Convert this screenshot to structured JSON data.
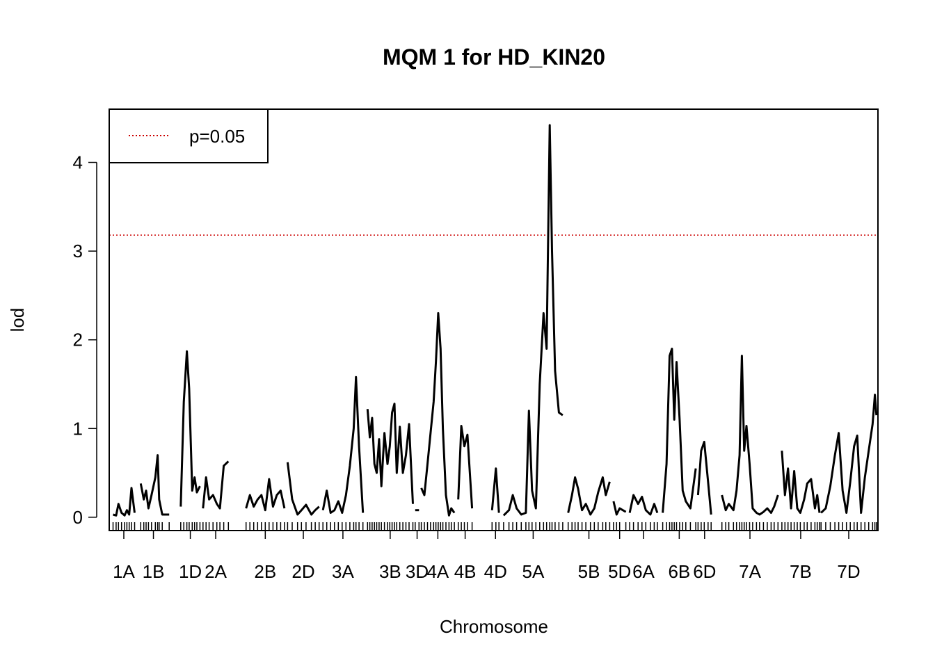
{
  "chart_data": {
    "type": "line",
    "title": "MQM 1 for HD_KIN20",
    "xlabel": "Chromosome",
    "ylabel": "lod",
    "ylim": [
      -0.15,
      4.6
    ],
    "yticks": [
      0,
      1,
      2,
      3,
      4
    ],
    "xlim": [
      0,
      100
    ],
    "grid": false,
    "legend": {
      "position": "top-left",
      "entries": [
        {
          "label": "p=0.05",
          "style": "dotted",
          "color": "#cc0000"
        }
      ]
    },
    "threshold": {
      "label": "p=0.05",
      "value": 3.18,
      "color": "#cc0000"
    },
    "chromosomes": [
      {
        "name": "1A",
        "start": 0.5,
        "end": 3.3,
        "labeled": true
      },
      {
        "name": "1B",
        "start": 3.7,
        "end": 7.8,
        "labeled": true
      },
      {
        "name": "1D",
        "start": 9.3,
        "end": 11.8,
        "labeled": true
      },
      {
        "name": "2A",
        "start": 12.2,
        "end": 15.5,
        "labeled": true
      },
      {
        "name": "2B",
        "start": 17.8,
        "end": 22.8,
        "labeled": true
      },
      {
        "name": "2D",
        "start": 23.2,
        "end": 27.3,
        "labeled": true
      },
      {
        "name": "3A",
        "start": 27.8,
        "end": 33.0,
        "labeled": true
      },
      {
        "name": "3B",
        "start": 33.6,
        "end": 39.5,
        "labeled": true
      },
      {
        "name": "3D",
        "start": 39.8,
        "end": 40.3,
        "labeled": true
      },
      {
        "name": "4A",
        "start": 40.6,
        "end": 44.9,
        "labeled": true
      },
      {
        "name": "4B",
        "start": 45.4,
        "end": 47.2,
        "labeled": true
      },
      {
        "name": "4D",
        "start": 49.8,
        "end": 50.7,
        "labeled": true
      },
      {
        "name": "5A",
        "start": 51.3,
        "end": 59.0,
        "labeled": true
      },
      {
        "name": "5B",
        "start": 59.7,
        "end": 65.1,
        "labeled": true
      },
      {
        "name": "5D",
        "start": 65.6,
        "end": 67.2,
        "labeled": true
      },
      {
        "name": "6A",
        "start": 67.7,
        "end": 71.3,
        "labeled": true
      },
      {
        "name": "6B",
        "start": 72.0,
        "end": 76.3,
        "labeled": true
      },
      {
        "name": "6D",
        "start": 76.6,
        "end": 78.3,
        "labeled": true
      },
      {
        "name": "7A",
        "start": 79.7,
        "end": 87.0,
        "labeled": true
      },
      {
        "name": "7B",
        "start": 87.5,
        "end": 92.4,
        "labeled": true
      },
      {
        "name": "7D",
        "start": 92.6,
        "end": 99.8,
        "labeled": true
      }
    ],
    "series": [
      {
        "values": [
          [
            0.5,
            0.03
          ],
          [
            0.9,
            0.02
          ],
          [
            1.2,
            0.15
          ],
          [
            1.6,
            0.05
          ],
          [
            2.0,
            0.02
          ],
          [
            2.3,
            0.08
          ],
          [
            2.6,
            0.03
          ],
          [
            2.9,
            0.33
          ],
          [
            3.3,
            0.05
          ],
          [
            4.1,
            0.38
          ],
          [
            4.5,
            0.2
          ],
          [
            4.8,
            0.3
          ],
          [
            5.1,
            0.1
          ],
          [
            5.5,
            0.25
          ],
          [
            6.0,
            0.45
          ],
          [
            6.3,
            0.7
          ],
          [
            6.5,
            0.2
          ],
          [
            6.9,
            0.03
          ],
          [
            7.8,
            0.03
          ],
          [
            9.3,
            0.12
          ],
          [
            9.7,
            1.3
          ],
          [
            10.1,
            1.87
          ],
          [
            10.4,
            1.45
          ],
          [
            10.8,
            0.3
          ],
          [
            11.1,
            0.45
          ],
          [
            11.4,
            0.28
          ],
          [
            11.8,
            0.35
          ],
          [
            12.2,
            0.1
          ],
          [
            12.6,
            0.45
          ],
          [
            13.0,
            0.2
          ],
          [
            13.5,
            0.25
          ],
          [
            14.0,
            0.15
          ],
          [
            14.4,
            0.1
          ],
          [
            14.9,
            0.58
          ],
          [
            15.5,
            0.63
          ],
          [
            17.8,
            0.1
          ],
          [
            18.3,
            0.25
          ],
          [
            18.8,
            0.12
          ],
          [
            19.3,
            0.2
          ],
          [
            19.8,
            0.25
          ],
          [
            20.3,
            0.08
          ],
          [
            20.8,
            0.43
          ],
          [
            21.3,
            0.12
          ],
          [
            21.8,
            0.25
          ],
          [
            22.3,
            0.3
          ],
          [
            22.8,
            0.1
          ],
          [
            23.2,
            0.62
          ],
          [
            23.8,
            0.2
          ],
          [
            24.5,
            0.03
          ],
          [
            25.0,
            0.08
          ],
          [
            25.6,
            0.14
          ],
          [
            26.3,
            0.03
          ],
          [
            26.8,
            0.08
          ],
          [
            27.3,
            0.12
          ],
          [
            27.8,
            0.08
          ],
          [
            28.3,
            0.3
          ],
          [
            28.8,
            0.05
          ],
          [
            29.3,
            0.08
          ],
          [
            29.8,
            0.18
          ],
          [
            30.3,
            0.05
          ],
          [
            30.8,
            0.25
          ],
          [
            31.3,
            0.58
          ],
          [
            31.8,
            1.0
          ],
          [
            32.1,
            1.58
          ],
          [
            32.5,
            0.8
          ],
          [
            33.0,
            0.05
          ],
          [
            33.6,
            1.22
          ],
          [
            33.9,
            0.9
          ],
          [
            34.2,
            1.12
          ],
          [
            34.5,
            0.6
          ],
          [
            34.8,
            0.5
          ],
          [
            35.1,
            0.88
          ],
          [
            35.4,
            0.35
          ],
          [
            35.8,
            0.95
          ],
          [
            36.2,
            0.6
          ],
          [
            36.5,
            0.8
          ],
          [
            36.8,
            1.18
          ],
          [
            37.1,
            1.28
          ],
          [
            37.4,
            0.5
          ],
          [
            37.8,
            1.02
          ],
          [
            38.2,
            0.5
          ],
          [
            38.6,
            0.7
          ],
          [
            39.0,
            1.05
          ],
          [
            39.5,
            0.15
          ],
          [
            39.8,
            0.08
          ],
          [
            40.3,
            0.08
          ],
          [
            40.6,
            0.33
          ],
          [
            41.0,
            0.25
          ],
          [
            41.4,
            0.6
          ],
          [
            41.8,
            0.95
          ],
          [
            42.2,
            1.3
          ],
          [
            42.5,
            1.75
          ],
          [
            42.8,
            2.3
          ],
          [
            43.1,
            1.9
          ],
          [
            43.4,
            1.0
          ],
          [
            43.8,
            0.25
          ],
          [
            44.2,
            0.02
          ],
          [
            44.5,
            0.1
          ],
          [
            44.9,
            0.05
          ],
          [
            45.4,
            0.2
          ],
          [
            45.8,
            1.03
          ],
          [
            46.2,
            0.8
          ],
          [
            46.6,
            0.93
          ],
          [
            47.2,
            0.1
          ],
          [
            49.8,
            0.08
          ],
          [
            50.3,
            0.55
          ],
          [
            50.7,
            0.05
          ],
          [
            51.3,
            0.02
          ],
          [
            52.0,
            0.08
          ],
          [
            52.5,
            0.25
          ],
          [
            53.0,
            0.1
          ],
          [
            53.6,
            0.03
          ],
          [
            54.2,
            0.05
          ],
          [
            54.6,
            1.2
          ],
          [
            55.0,
            0.3
          ],
          [
            55.5,
            0.1
          ],
          [
            56.0,
            1.5
          ],
          [
            56.5,
            2.3
          ],
          [
            56.9,
            1.9
          ],
          [
            57.3,
            4.42
          ],
          [
            57.6,
            3.0
          ],
          [
            58.0,
            1.65
          ],
          [
            58.5,
            1.18
          ],
          [
            59.0,
            1.15
          ],
          [
            59.7,
            0.05
          ],
          [
            60.2,
            0.25
          ],
          [
            60.6,
            0.45
          ],
          [
            61.0,
            0.32
          ],
          [
            61.5,
            0.08
          ],
          [
            62.0,
            0.15
          ],
          [
            62.6,
            0.03
          ],
          [
            63.1,
            0.1
          ],
          [
            63.6,
            0.28
          ],
          [
            64.2,
            0.45
          ],
          [
            64.6,
            0.25
          ],
          [
            65.1,
            0.4
          ],
          [
            65.6,
            0.18
          ],
          [
            66.0,
            0.03
          ],
          [
            66.4,
            0.1
          ],
          [
            67.2,
            0.06
          ],
          [
            67.7,
            0.05
          ],
          [
            68.2,
            0.25
          ],
          [
            68.8,
            0.15
          ],
          [
            69.3,
            0.23
          ],
          [
            69.8,
            0.08
          ],
          [
            70.4,
            0.03
          ],
          [
            70.9,
            0.15
          ],
          [
            71.3,
            0.05
          ],
          [
            72.0,
            0.05
          ],
          [
            72.5,
            0.6
          ],
          [
            72.9,
            1.82
          ],
          [
            73.2,
            1.9
          ],
          [
            73.5,
            1.1
          ],
          [
            73.8,
            1.75
          ],
          [
            74.2,
            1.1
          ],
          [
            74.6,
            0.3
          ],
          [
            75.0,
            0.18
          ],
          [
            75.6,
            0.1
          ],
          [
            76.3,
            0.55
          ],
          [
            76.6,
            0.25
          ],
          [
            77.0,
            0.75
          ],
          [
            77.4,
            0.85
          ],
          [
            77.9,
            0.4
          ],
          [
            78.3,
            0.03
          ],
          [
            79.7,
            0.25
          ],
          [
            80.2,
            0.08
          ],
          [
            80.6,
            0.15
          ],
          [
            81.2,
            0.08
          ],
          [
            81.6,
            0.3
          ],
          [
            82.0,
            0.7
          ],
          [
            82.3,
            1.82
          ],
          [
            82.6,
            0.75
          ],
          [
            82.9,
            1.03
          ],
          [
            83.3,
            0.6
          ],
          [
            83.7,
            0.1
          ],
          [
            84.2,
            0.05
          ],
          [
            84.6,
            0.03
          ],
          [
            85.1,
            0.06
          ],
          [
            85.6,
            0.1
          ],
          [
            86.1,
            0.05
          ],
          [
            86.5,
            0.12
          ],
          [
            87.0,
            0.25
          ],
          [
            87.5,
            0.75
          ],
          [
            87.9,
            0.25
          ],
          [
            88.3,
            0.55
          ],
          [
            88.7,
            0.1
          ],
          [
            89.1,
            0.52
          ],
          [
            89.5,
            0.1
          ],
          [
            89.9,
            0.05
          ],
          [
            90.4,
            0.2
          ],
          [
            90.8,
            0.38
          ],
          [
            91.3,
            0.43
          ],
          [
            91.8,
            0.1
          ],
          [
            92.1,
            0.25
          ],
          [
            92.4,
            0.05
          ],
          [
            92.6,
            0.05
          ],
          [
            93.2,
            0.1
          ],
          [
            93.8,
            0.35
          ],
          [
            94.4,
            0.7
          ],
          [
            94.9,
            0.95
          ],
          [
            95.4,
            0.3
          ],
          [
            95.9,
            0.05
          ],
          [
            96.4,
            0.4
          ],
          [
            96.9,
            0.8
          ],
          [
            97.3,
            0.92
          ],
          [
            97.8,
            0.05
          ],
          [
            98.3,
            0.45
          ],
          [
            98.8,
            0.75
          ],
          [
            99.3,
            1.05
          ],
          [
            99.6,
            1.38
          ],
          [
            99.8,
            1.15
          ]
        ]
      }
    ]
  }
}
